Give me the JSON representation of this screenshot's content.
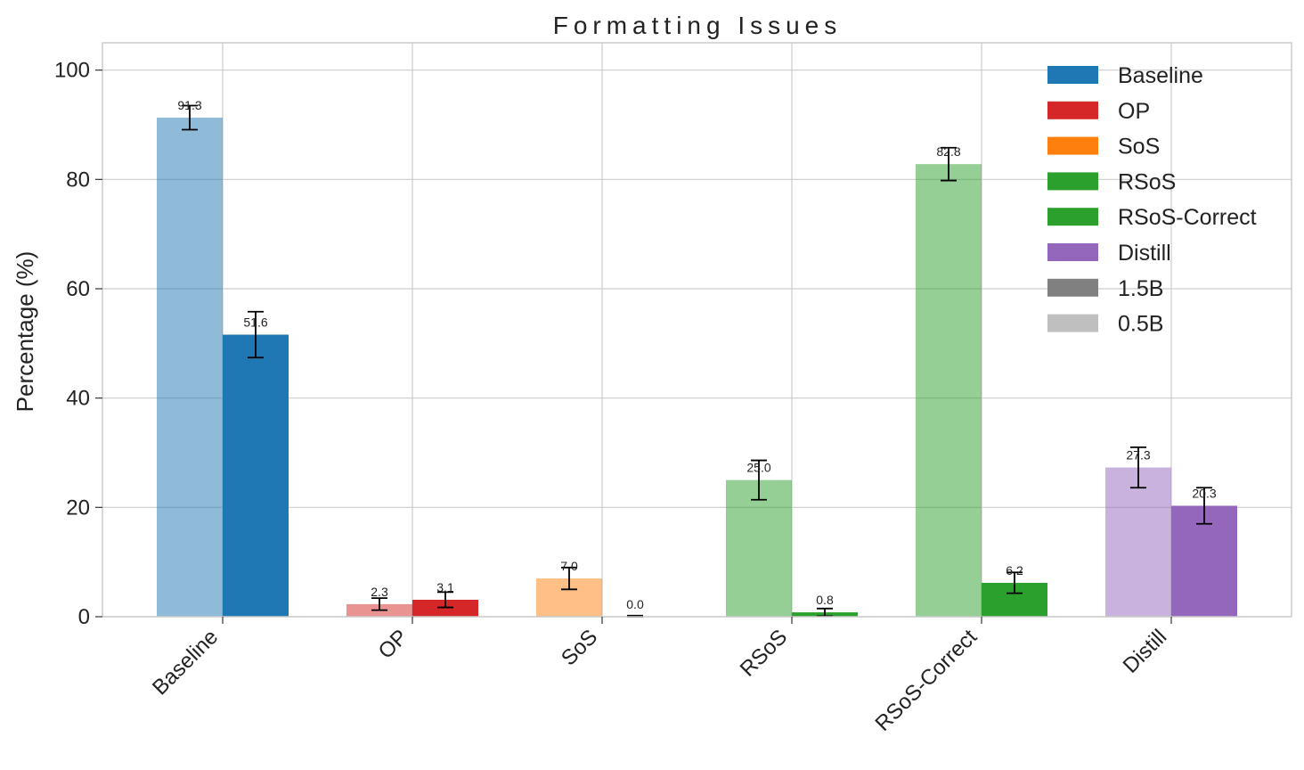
{
  "chart_data": {
    "type": "bar",
    "title": "Formatting Issues",
    "xlabel": "",
    "ylabel": "Percentage (%)",
    "ylim": [
      0,
      105
    ],
    "yticks": [
      0,
      20,
      40,
      60,
      80,
      100
    ],
    "grid": true,
    "legend_position": "top-right",
    "categories": [
      "Baseline",
      "OP",
      "SoS",
      "RSoS",
      "RSoS-Correct",
      "Distill"
    ],
    "category_colors": [
      "#1f77b4",
      "#d62728",
      "#ff7f0e",
      "#2ca02c",
      "#2ca02c",
      "#9467bd"
    ],
    "series": [
      {
        "name": "0.5B",
        "alpha": 0.5,
        "values": [
          91.3,
          2.3,
          7.0,
          25.0,
          82.8,
          27.3
        ],
        "errors": [
          2.2,
          1.1,
          2.0,
          3.6,
          3.0,
          3.7
        ],
        "labels": [
          "91.3",
          "2.3",
          "7.0",
          "25.0",
          "82.8",
          "27.3"
        ]
      },
      {
        "name": "1.5B",
        "alpha": 1.0,
        "values": [
          51.6,
          3.1,
          0.0,
          0.8,
          6.2,
          20.3
        ],
        "errors": [
          4.2,
          1.4,
          0.2,
          0.7,
          1.9,
          3.3
        ],
        "labels": [
          "51.6",
          "3.1",
          "0.0",
          "0.8",
          "6.2",
          "20.3"
        ]
      }
    ],
    "legend": [
      {
        "label": "Baseline",
        "color": "#1f77b4",
        "alpha": 1.0
      },
      {
        "label": "OP",
        "color": "#d62728",
        "alpha": 1.0
      },
      {
        "label": "SoS",
        "color": "#ff7f0e",
        "alpha": 1.0
      },
      {
        "label": "RSoS",
        "color": "#2ca02c",
        "alpha": 1.0
      },
      {
        "label": "RSoS-Correct",
        "color": "#2ca02c",
        "alpha": 1.0
      },
      {
        "label": "Distill",
        "color": "#9467bd",
        "alpha": 1.0
      },
      {
        "label": "1.5B",
        "color": "#808080",
        "alpha": 1.0
      },
      {
        "label": "0.5B",
        "color": "#808080",
        "alpha": 0.5
      }
    ]
  }
}
